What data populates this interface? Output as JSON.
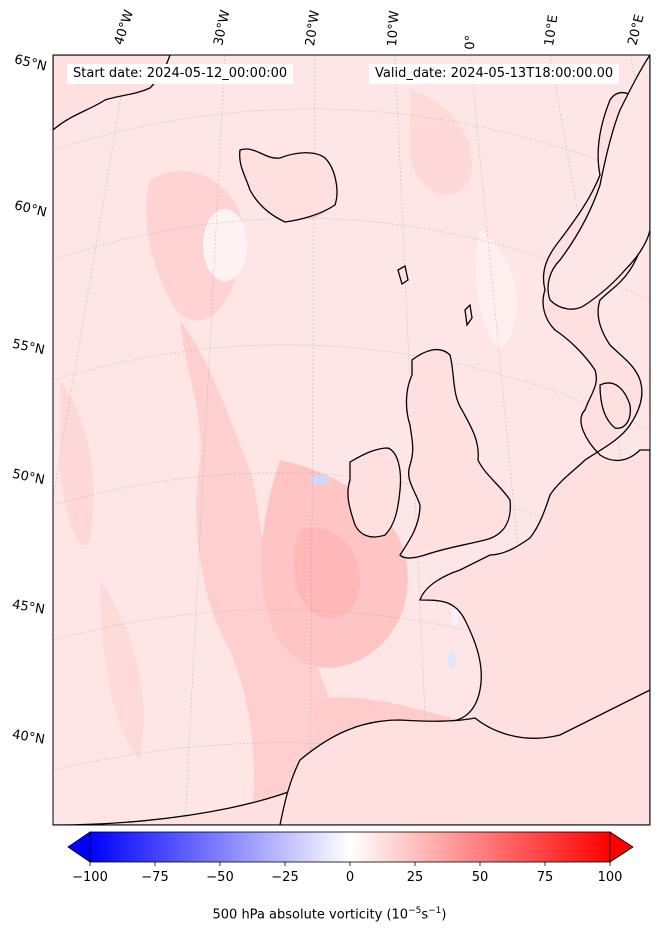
{
  "map": {
    "start_date": "Start date: 2024-05-12_00:00:00",
    "valid_date": "Valid_date: 2024-05-13T18:00:00.00",
    "lon_labels": [
      "40°W",
      "30°W",
      "20°W",
      "10°W",
      "0°",
      "10°E",
      "20°E"
    ],
    "lat_labels": [
      "65°N",
      "60°N",
      "55°N",
      "50°N",
      "45°N",
      "40°N"
    ],
    "field": "500 hPa absolute vorticity",
    "colormap": "bwr",
    "ocean_fill_color": "#ffe3e3",
    "max_fill_color": "#ff9c9c",
    "min_fill_color": "#c9d6ff"
  },
  "colorbar": {
    "ticks": [
      "−100",
      "−75",
      "−50",
      "−25",
      "0",
      "25",
      "50",
      "75",
      "100"
    ],
    "values": [
      -100,
      -75,
      -50,
      -25,
      0,
      25,
      50,
      75,
      100
    ],
    "label_main": "500 hPa absolute vorticity (10",
    "label_exp1": "−5",
    "label_mid": "s",
    "label_exp2": "−1",
    "label_end": ")",
    "extend": "both",
    "low_color": "#0000ff",
    "high_color": "#ff0000"
  }
}
